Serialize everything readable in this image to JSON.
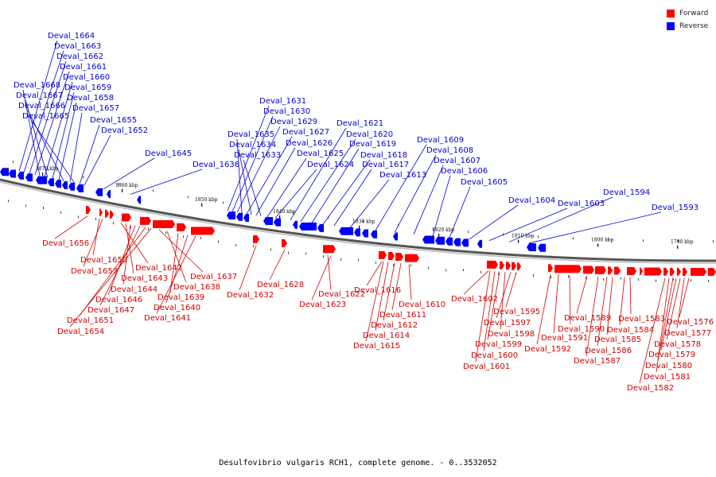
{
  "legend": {
    "items": [
      {
        "label": "Forward",
        "color": "#ff0000"
      },
      {
        "label": "Reverse",
        "color": "#0000ff"
      }
    ]
  },
  "caption": "Desulfovibrio vulgaris RCH1, complete genome. - 0..3532052",
  "colors": {
    "forward": "#ff0000",
    "reverse": "#0000ff",
    "forward_label": "#d00000",
    "reverse_label": "#0000d0",
    "backbone": "#555555"
  },
  "scale_labels": [
    "1870 kbp",
    "1860 kbp",
    "1850 kbp",
    "1840 kbp",
    "1830 kbp",
    "1820 kbp",
    "1810 kbp",
    "1800 kbp",
    "1790 kbp"
  ],
  "reverse_genes": [
    "Deval_1664",
    "Deval_1663",
    "Deval_1662",
    "Deval_1661",
    "Deval_1668",
    "Deval_1660",
    "Deval_1667",
    "Deval_1659",
    "Deval_1658",
    "Deval_1666",
    "Deval_1657",
    "Deval_1665",
    "Deval_1655",
    "Deval_1652",
    "Deval_1645",
    "Deval_1636",
    "Deval_1631",
    "Deval_1630",
    "Deval_1629",
    "Deval_1635",
    "Deval_1627",
    "Deval_1634",
    "Deval_1626",
    "Deval_1633",
    "Deval_1625",
    "Deval_1624",
    "Deval_1621",
    "Deval_1620",
    "Deval_1619",
    "Deval_1618",
    "Deval_1617",
    "Deval_1613",
    "Deval_1609",
    "Deval_1608",
    "Deval_1607",
    "Deval_1606",
    "Deval_1605",
    "Deval_1604",
    "Deval_1603",
    "Deval_1594",
    "Deval_1593"
  ],
  "forward_genes": [
    "Deval_1656",
    "Deval_1650",
    "Deval_1653",
    "Deval_1642",
    "Deval_1643",
    "Deval_1644",
    "Deval_1637",
    "Deval_1646",
    "Deval_1638",
    "Deval_1639",
    "Deval_1647",
    "Deval_1640",
    "Deval_1651",
    "Deval_1641",
    "Deval_1654",
    "Deval_1628",
    "Deval_1632",
    "Deval_1622",
    "Deval_1623",
    "Deval_1616",
    "Deval_1610",
    "Deval_1611",
    "Deval_1612",
    "Deval_1614",
    "Deval_1615",
    "Deval_1602",
    "Deval_1595",
    "Deval_1597",
    "Deval_1598",
    "Deval_1599",
    "Deval_1600",
    "Deval_1601",
    "Deval_1592",
    "Deval_1591",
    "Deval_1590",
    "Deval_1589",
    "Deval_1587",
    "Deval_1586",
    "Deval_1585",
    "Deval_1584",
    "Deval_1583",
    "Deval_1582",
    "Deval_1581",
    "Deval_1580",
    "Deval_1579",
    "Deval_1578",
    "Deval_1577",
    "Deval_1576"
  ]
}
